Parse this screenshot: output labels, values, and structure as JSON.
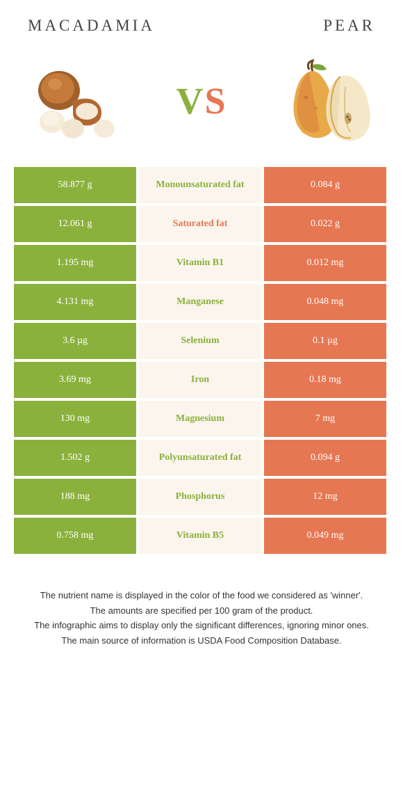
{
  "left_food": "Macadamia",
  "right_food": "Pear",
  "vs_text": {
    "v": "V",
    "s": "S"
  },
  "colors": {
    "left": "#8bb13d",
    "right": "#e67753",
    "mid_bg": "#fbf5ed"
  },
  "rows": [
    {
      "left": "58.877 g",
      "nutrient": "Monounsaturated fat",
      "right": "0.084 g",
      "winner": "left"
    },
    {
      "left": "12.061 g",
      "nutrient": "Saturated fat",
      "right": "0.022 g",
      "winner": "right"
    },
    {
      "left": "1.195 mg",
      "nutrient": "Vitamin B1",
      "right": "0.012 mg",
      "winner": "left"
    },
    {
      "left": "4.131 mg",
      "nutrient": "Manganese",
      "right": "0.048 mg",
      "winner": "left"
    },
    {
      "left": "3.6 µg",
      "nutrient": "Selenium",
      "right": "0.1 µg",
      "winner": "left"
    },
    {
      "left": "3.69 mg",
      "nutrient": "Iron",
      "right": "0.18 mg",
      "winner": "left"
    },
    {
      "left": "130 mg",
      "nutrient": "Magnesium",
      "right": "7 mg",
      "winner": "left"
    },
    {
      "left": "1.502 g",
      "nutrient": "Polyunsaturated fat",
      "right": "0.094 g",
      "winner": "left"
    },
    {
      "left": "188 mg",
      "nutrient": "Phosphorus",
      "right": "12 mg",
      "winner": "left"
    },
    {
      "left": "0.758 mg",
      "nutrient": "Vitamin B5",
      "right": "0.049 mg",
      "winner": "left"
    }
  ],
  "footer": [
    "The nutrient name is displayed in the color of the food we considered as 'winner'.",
    "The amounts are specified per 100 gram of the product.",
    "The infographic aims to display only the significant differences, ignoring minor ones.",
    "The main source of information is USDA Food Composition Database."
  ]
}
